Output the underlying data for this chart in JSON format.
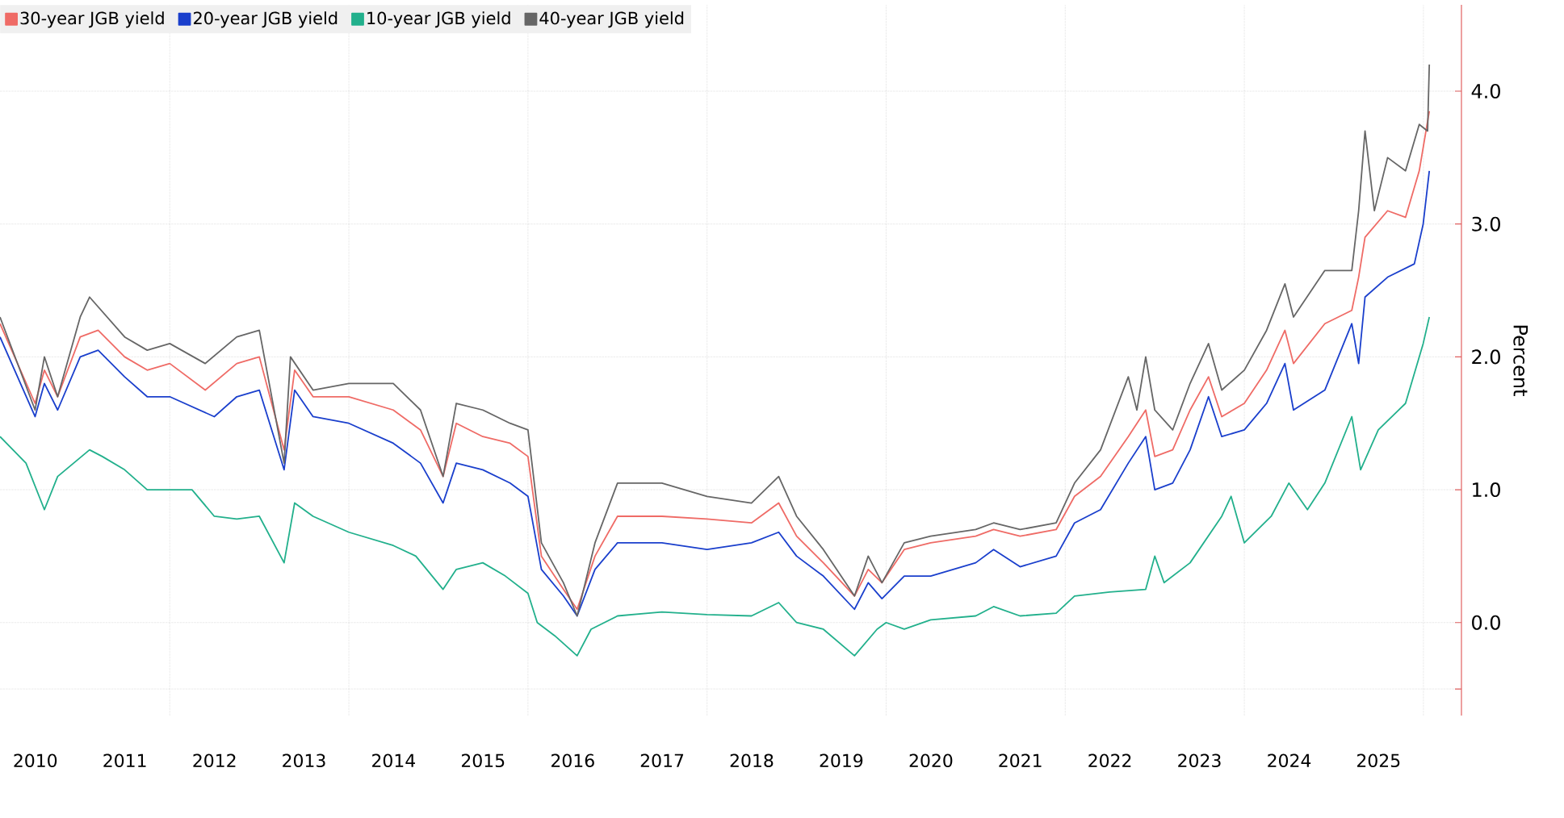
{
  "chart_data": {
    "type": "line",
    "ylabel": "Percent",
    "xlim": [
      "2010-02-08",
      "2026-06-05"
    ],
    "ylim": [
      -0.7,
      4.65
    ],
    "xticks": [
      {
        "value": "2012-01-01",
        "label": null
      },
      {
        "value": "2014-01-01",
        "label": null
      },
      {
        "value": "2016-01-01",
        "label": null
      },
      {
        "value": "2018-01-01",
        "label": null
      },
      {
        "value": "2020-01-01",
        "label": null
      },
      {
        "value": "2022-01-01",
        "label": null
      },
      {
        "value": "2024-01-01",
        "label": null
      },
      {
        "value": "2026-01-01",
        "label": null
      },
      {
        "value": "2010-07-02",
        "label": "2010"
      },
      {
        "value": "2011-07-02",
        "label": "2011"
      },
      {
        "value": "2012-07-02",
        "label": "2012"
      },
      {
        "value": "2013-07-02",
        "label": "2013"
      },
      {
        "value": "2014-07-02",
        "label": "2014"
      },
      {
        "value": "2015-07-02",
        "label": "2015"
      },
      {
        "value": "2016-07-02",
        "label": "2016"
      },
      {
        "value": "2017-07-02",
        "label": "2017"
      },
      {
        "value": "2018-07-02",
        "label": "2018"
      },
      {
        "value": "2019-07-02",
        "label": "2019"
      },
      {
        "value": "2020-07-02",
        "label": "2020"
      },
      {
        "value": "2021-07-02",
        "label": "2021"
      },
      {
        "value": "2022-07-02",
        "label": "2022"
      },
      {
        "value": "2023-07-02",
        "label": "2023"
      },
      {
        "value": "2024-07-02",
        "label": "2024"
      },
      {
        "value": "2025-07-02",
        "label": "2025"
      }
    ],
    "yticks": [
      {
        "value": -0.5,
        "label": null
      },
      {
        "value": 0.0,
        "label": "0.0"
      },
      {
        "value": 1.0,
        "label": "1.0"
      },
      {
        "value": 2.0,
        "label": "2.0"
      },
      {
        "value": 3.0,
        "label": "3.0"
      },
      {
        "value": 4.0,
        "label": "4.0"
      }
    ],
    "grid": true,
    "legend": "top left",
    "line_style": "solid",
    "series": [
      {
        "name": "30-year JGB yield",
        "color": "#ef6b66",
        "x": [
          "2010-02-08",
          "2010-07-01",
          "2010-08-08",
          "2010-10-01",
          "2011-01-01",
          "2011-03-15",
          "2011-07-01",
          "2011-10-01",
          "2012-01-01",
          "2012-05-25",
          "2012-10-01",
          "2013-01-01",
          "2013-04-12",
          "2013-05-25",
          "2013-08-08",
          "2014-01-01",
          "2014-07-01",
          "2014-10-20",
          "2015-01-20",
          "2015-03-15",
          "2015-07-01",
          "2015-10-20",
          "2016-01-01",
          "2016-02-25",
          "2016-05-25",
          "2016-07-20",
          "2016-10-01",
          "2017-01-01",
          "2017-07-01",
          "2018-01-01",
          "2018-07-01",
          "2018-10-20",
          "2019-01-01",
          "2019-04-20",
          "2019-08-25",
          "2019-10-20",
          "2019-12-15",
          "2020-03-15",
          "2020-07-01",
          "2021-01-01",
          "2021-03-15",
          "2021-07-01",
          "2021-11-25",
          "2022-02-08",
          "2022-05-25",
          "2022-09-15",
          "2022-11-25",
          "2023-01-01",
          "2023-03-15",
          "2023-05-25",
          "2023-08-08",
          "2023-10-01",
          "2024-01-01",
          "2024-04-01",
          "2024-06-15",
          "2024-07-20",
          "2024-11-25",
          "2025-03-15",
          "2025-04-12",
          "2025-05-08",
          "2025-08-08",
          "2025-10-20",
          "2025-12-15",
          "2026-01-25"
        ],
        "values": [
          2.25,
          1.65,
          1.9,
          1.7,
          2.15,
          2.2,
          2.0,
          1.9,
          1.95,
          1.75,
          1.95,
          2.0,
          1.3,
          1.9,
          1.7,
          1.7,
          1.6,
          1.45,
          1.1,
          1.5,
          1.4,
          1.35,
          1.25,
          0.5,
          0.25,
          0.1,
          0.5,
          0.8,
          0.8,
          0.78,
          0.75,
          0.9,
          0.65,
          0.45,
          0.2,
          0.4,
          0.3,
          0.55,
          0.6,
          0.65,
          0.7,
          0.65,
          0.7,
          0.95,
          1.1,
          1.4,
          1.6,
          1.25,
          1.3,
          1.6,
          1.85,
          1.55,
          1.65,
          1.9,
          2.2,
          1.95,
          2.25,
          2.35,
          2.6,
          2.9,
          3.1,
          3.05,
          3.4,
          3.85
        ]
      },
      {
        "name": "20-year JGB yield",
        "color": "#1a3fcc",
        "x": [
          "2010-02-08",
          "2010-07-01",
          "2010-08-08",
          "2010-10-01",
          "2011-01-01",
          "2011-03-15",
          "2011-07-01",
          "2011-10-01",
          "2012-01-01",
          "2012-07-01",
          "2012-10-01",
          "2013-01-01",
          "2013-04-12",
          "2013-05-25",
          "2013-08-08",
          "2014-01-01",
          "2014-07-01",
          "2014-10-20",
          "2015-01-20",
          "2015-03-15",
          "2015-07-01",
          "2015-10-20",
          "2016-01-01",
          "2016-02-25",
          "2016-05-25",
          "2016-07-20",
          "2016-10-01",
          "2017-01-01",
          "2017-07-01",
          "2018-01-01",
          "2018-07-01",
          "2018-10-20",
          "2019-01-01",
          "2019-04-20",
          "2019-08-25",
          "2019-10-20",
          "2019-12-15",
          "2020-03-15",
          "2020-07-01",
          "2021-01-01",
          "2021-03-15",
          "2021-07-01",
          "2021-11-25",
          "2022-02-08",
          "2022-05-25",
          "2022-09-15",
          "2022-11-25",
          "2023-01-01",
          "2023-03-15",
          "2023-05-25",
          "2023-08-08",
          "2023-10-01",
          "2024-01-01",
          "2024-04-01",
          "2024-06-15",
          "2024-07-20",
          "2024-11-25",
          "2025-03-15",
          "2025-04-12",
          "2025-05-08",
          "2025-08-08",
          "2025-11-25",
          "2025-12-31",
          "2026-01-25"
        ],
        "values": [
          2.15,
          1.55,
          1.8,
          1.6,
          2.0,
          2.05,
          1.85,
          1.7,
          1.7,
          1.55,
          1.7,
          1.75,
          1.15,
          1.75,
          1.55,
          1.5,
          1.35,
          1.2,
          0.9,
          1.2,
          1.15,
          1.05,
          0.95,
          0.4,
          0.2,
          0.05,
          0.4,
          0.6,
          0.6,
          0.55,
          0.6,
          0.68,
          0.5,
          0.35,
          0.1,
          0.3,
          0.18,
          0.35,
          0.35,
          0.45,
          0.55,
          0.42,
          0.5,
          0.75,
          0.85,
          1.2,
          1.4,
          1.0,
          1.05,
          1.3,
          1.7,
          1.4,
          1.45,
          1.65,
          1.95,
          1.6,
          1.75,
          2.25,
          1.95,
          2.45,
          2.6,
          2.7,
          3.0,
          3.4
        ]
      },
      {
        "name": "10-year JGB yield",
        "color": "#22b08c",
        "x": [
          "2010-02-08",
          "2010-05-25",
          "2010-08-08",
          "2010-10-01",
          "2011-02-08",
          "2011-04-01",
          "2011-07-01",
          "2011-10-01",
          "2012-01-01",
          "2012-04-01",
          "2012-07-01",
          "2012-10-01",
          "2013-01-01",
          "2013-04-12",
          "2013-05-25",
          "2013-08-08",
          "2014-01-01",
          "2014-07-01",
          "2014-10-01",
          "2015-01-20",
          "2015-03-15",
          "2015-07-01",
          "2015-10-01",
          "2016-01-01",
          "2016-02-08",
          "2016-04-20",
          "2016-07-20",
          "2016-09-15",
          "2017-01-01",
          "2017-07-01",
          "2018-01-01",
          "2018-07-01",
          "2018-10-20",
          "2019-01-01",
          "2019-04-20",
          "2019-08-25",
          "2019-11-25",
          "2020-01-01",
          "2020-03-15",
          "2020-07-01",
          "2021-01-01",
          "2021-03-15",
          "2021-07-01",
          "2021-11-25",
          "2022-02-08",
          "2022-07-01",
          "2022-11-25",
          "2023-01-01",
          "2023-02-08",
          "2023-05-25",
          "2023-10-01",
          "2023-11-08",
          "2024-01-01",
          "2024-04-20",
          "2024-07-01",
          "2024-09-15",
          "2024-11-25",
          "2025-03-15",
          "2025-04-20",
          "2025-07-01",
          "2025-10-20",
          "2025-12-31",
          "2026-01-25"
        ],
        "values": [
          1.4,
          1.2,
          0.85,
          1.1,
          1.3,
          1.25,
          1.15,
          1.0,
          1.0,
          1.0,
          0.8,
          0.78,
          0.8,
          0.45,
          0.9,
          0.8,
          0.68,
          0.58,
          0.5,
          0.25,
          0.4,
          0.45,
          0.35,
          0.22,
          0.0,
          -0.1,
          -0.25,
          -0.05,
          0.05,
          0.08,
          0.06,
          0.05,
          0.15,
          0.0,
          -0.05,
          -0.25,
          -0.05,
          0.0,
          -0.05,
          0.02,
          0.05,
          0.12,
          0.05,
          0.07,
          0.2,
          0.23,
          0.25,
          0.5,
          0.3,
          0.45,
          0.8,
          0.95,
          0.6,
          0.8,
          1.05,
          0.85,
          1.05,
          1.55,
          1.15,
          1.45,
          1.65,
          2.1,
          2.3
        ]
      },
      {
        "name": "40-year JGB yield",
        "color": "#666666",
        "x": [
          "2010-02-08",
          "2010-07-01",
          "2010-08-08",
          "2010-10-01",
          "2011-01-01",
          "2011-02-08",
          "2011-07-01",
          "2011-10-01",
          "2012-01-01",
          "2012-05-25",
          "2012-10-01",
          "2013-01-01",
          "2013-04-12",
          "2013-05-08",
          "2013-08-08",
          "2014-01-01",
          "2014-07-01",
          "2014-10-20",
          "2015-01-20",
          "2015-03-15",
          "2015-07-01",
          "2015-10-20",
          "2016-01-01",
          "2016-02-25",
          "2016-05-25",
          "2016-07-20",
          "2016-10-01",
          "2017-01-01",
          "2017-07-01",
          "2018-01-01",
          "2018-07-01",
          "2018-10-20",
          "2019-01-01",
          "2019-04-20",
          "2019-08-25",
          "2019-10-20",
          "2019-12-15",
          "2020-03-15",
          "2020-07-01",
          "2021-01-01",
          "2021-03-15",
          "2021-07-01",
          "2021-11-25",
          "2022-02-08",
          "2022-05-25",
          "2022-09-15",
          "2022-10-20",
          "2022-11-25",
          "2023-01-01",
          "2023-03-15",
          "2023-05-25",
          "2023-08-08",
          "2023-10-01",
          "2024-01-01",
          "2024-04-01",
          "2024-06-15",
          "2024-07-20",
          "2024-11-25",
          "2025-03-15",
          "2025-04-12",
          "2025-05-08",
          "2025-06-15",
          "2025-08-08",
          "2025-10-20",
          "2025-12-15",
          "2026-01-18",
          "2026-01-25"
        ],
        "values": [
          2.3,
          1.6,
          2.0,
          1.7,
          2.3,
          2.45,
          2.15,
          2.05,
          2.1,
          1.95,
          2.15,
          2.2,
          1.2,
          2.0,
          1.75,
          1.8,
          1.8,
          1.6,
          1.1,
          1.65,
          1.6,
          1.5,
          1.45,
          0.6,
          0.3,
          0.05,
          0.6,
          1.05,
          1.05,
          0.95,
          0.9,
          1.1,
          0.8,
          0.55,
          0.2,
          0.5,
          0.3,
          0.6,
          0.65,
          0.7,
          0.75,
          0.7,
          0.75,
          1.05,
          1.3,
          1.85,
          1.6,
          2.0,
          1.6,
          1.45,
          1.8,
          2.1,
          1.75,
          1.9,
          2.2,
          2.55,
          2.3,
          2.65,
          2.65,
          3.1,
          3.7,
          3.1,
          3.5,
          3.4,
          3.75,
          3.7,
          4.2
        ]
      }
    ]
  }
}
